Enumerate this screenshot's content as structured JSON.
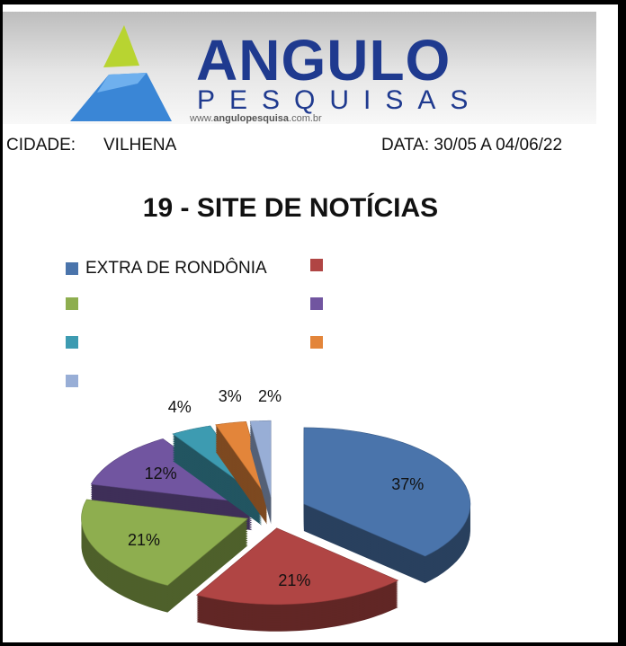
{
  "header": {
    "brand": "ANGULO",
    "brand_sub": "PESQUISAS",
    "url_prefix": "www.",
    "url_main": "angulopesquisa",
    "url_suffix": ".com.br",
    "city_label": "CIDADE:",
    "city_value": "VILHENA",
    "date_text": "DATA: 30/05 A 04/06/22"
  },
  "chart_data": {
    "type": "pie",
    "style": "3d-exploded",
    "title": "19 - SITE DE NOTÍCIAS",
    "legend_placement": "top",
    "slices": [
      {
        "label": "EXTRA DE RONDÔNIA",
        "value": 37,
        "display": "37%",
        "color": "#4a74ab"
      },
      {
        "label": "",
        "value": 21,
        "display": "21%",
        "color": "#b04544"
      },
      {
        "label": "",
        "value": 21,
        "display": "21%",
        "color": "#8eae4f"
      },
      {
        "label": "",
        "value": 12,
        "display": "12%",
        "color": "#7155a0"
      },
      {
        "label": "",
        "value": 4,
        "display": "4%",
        "color": "#3d9bb1"
      },
      {
        "label": "",
        "value": 3,
        "display": "3%",
        "color": "#e3853a"
      },
      {
        "label": "",
        "value": 2,
        "display": "2%",
        "color": "#98aed6"
      }
    ]
  }
}
